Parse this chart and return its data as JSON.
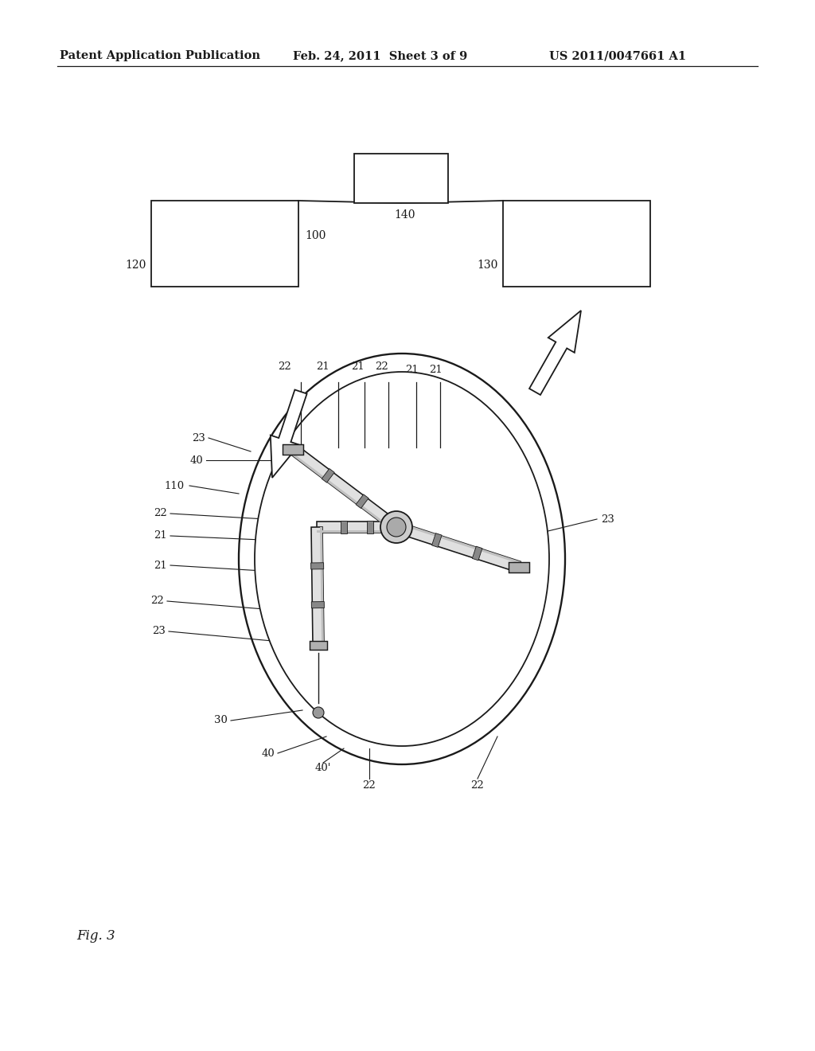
{
  "bg_color": "#ffffff",
  "header_left": "Patent Application Publication",
  "header_mid": "Feb. 24, 2011  Sheet 3 of 9",
  "header_right": "US 2011/0047661 A1",
  "footer_label": "Fig. 3",
  "line_color": "#1a1a1a",
  "fig_w": 10.24,
  "fig_h": 13.2,
  "dpi": 100
}
